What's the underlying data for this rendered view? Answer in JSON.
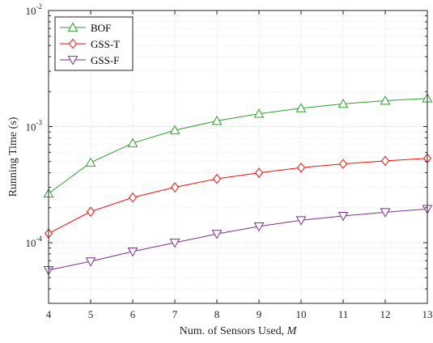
{
  "chart_data": {
    "type": "line",
    "x": [
      4,
      5,
      6,
      7,
      8,
      9,
      10,
      11,
      12,
      13
    ],
    "xlabel": "Num. of Sensors Used, ",
    "xlabel_var": "M",
    "ylabel": "Running Time (s)",
    "xlim": [
      4,
      13
    ],
    "ylim": [
      3e-05,
      0.01
    ],
    "yscale": "log",
    "grid": true,
    "legend_position": "top-left",
    "x_ticks": [
      "4",
      "5",
      "6",
      "7",
      "8",
      "9",
      "10",
      "11",
      "12",
      "13"
    ],
    "y_ticks": [
      {
        "value": 0.0001,
        "base": "10",
        "exp": "-4"
      },
      {
        "value": 0.001,
        "base": "10",
        "exp": "-3"
      },
      {
        "value": 0.01,
        "base": "10",
        "exp": "-2"
      }
    ],
    "series": [
      {
        "name": "BOF",
        "color": "#2ca02c",
        "marker": "triangle-up",
        "values": [
          0.000265,
          0.00049,
          0.00072,
          0.00093,
          0.00112,
          0.00129,
          0.00144,
          0.00157,
          0.00167,
          0.00175
        ]
      },
      {
        "name": "GSS-T",
        "color": "#e8100c",
        "marker": "diamond",
        "values": [
          0.00012,
          0.000185,
          0.000245,
          0.0003,
          0.000355,
          0.0004,
          0.000443,
          0.000477,
          0.000507,
          0.000533
        ]
      },
      {
        "name": "GSS-F",
        "color": "#7e2f8e",
        "marker": "triangle-down",
        "values": [
          5.8e-05,
          6.9e-05,
          8.4e-05,
          0.0001,
          0.000119,
          0.000138,
          0.000156,
          0.00017,
          0.000183,
          0.000195
        ]
      }
    ]
  }
}
